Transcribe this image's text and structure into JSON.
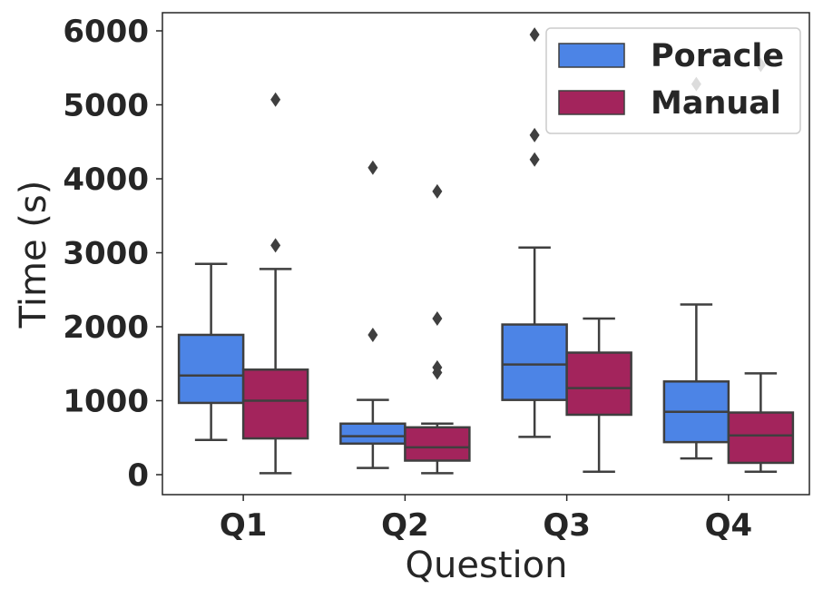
{
  "chart_data": {
    "type": "box",
    "title": "",
    "xlabel": "Question",
    "ylabel": "Time (s)",
    "categories": [
      "Q1",
      "Q2",
      "Q3",
      "Q4"
    ],
    "y_ticks": [
      0,
      1000,
      2000,
      3000,
      4000,
      5000,
      6000
    ],
    "ylim": [
      -280,
      6230
    ],
    "grid": false,
    "legend_position": "top-right",
    "series": [
      {
        "name": "Poracle",
        "color": "#4c84e6",
        "boxes": [
          {
            "category": "Q1",
            "whisker_low": 470,
            "q1": 970,
            "median": 1340,
            "q3": 1890,
            "whisker_high": 2850,
            "outliers": []
          },
          {
            "category": "Q2",
            "whisker_low": 90,
            "q1": 420,
            "median": 520,
            "q3": 690,
            "whisker_high": 1010,
            "outliers": [
              1890,
              4150
            ]
          },
          {
            "category": "Q3",
            "whisker_low": 510,
            "q1": 1010,
            "median": 1490,
            "q3": 2030,
            "whisker_high": 3070,
            "outliers": [
              4260,
              4590,
              5950
            ]
          },
          {
            "category": "Q4",
            "whisker_low": 220,
            "q1": 440,
            "median": 850,
            "q3": 1260,
            "whisker_high": 2300,
            "outliers": [
              5280
            ]
          }
        ]
      },
      {
        "name": "Manual",
        "color": "#a3245c",
        "boxes": [
          {
            "category": "Q1",
            "whisker_low": 20,
            "q1": 490,
            "median": 1000,
            "q3": 1420,
            "whisker_high": 2780,
            "outliers": [
              3100,
              5070
            ]
          },
          {
            "category": "Q2",
            "whisker_low": 20,
            "q1": 190,
            "median": 370,
            "q3": 640,
            "whisker_high": 690,
            "outliers": [
              1380,
              1450,
              2110,
              3830
            ]
          },
          {
            "category": "Q3",
            "whisker_low": 40,
            "q1": 810,
            "median": 1170,
            "q3": 1650,
            "whisker_high": 2110,
            "outliers": []
          },
          {
            "category": "Q4",
            "whisker_low": 40,
            "q1": 160,
            "median": 530,
            "q3": 840,
            "whisker_high": 1370,
            "outliers": [
              5540
            ]
          }
        ]
      }
    ]
  }
}
